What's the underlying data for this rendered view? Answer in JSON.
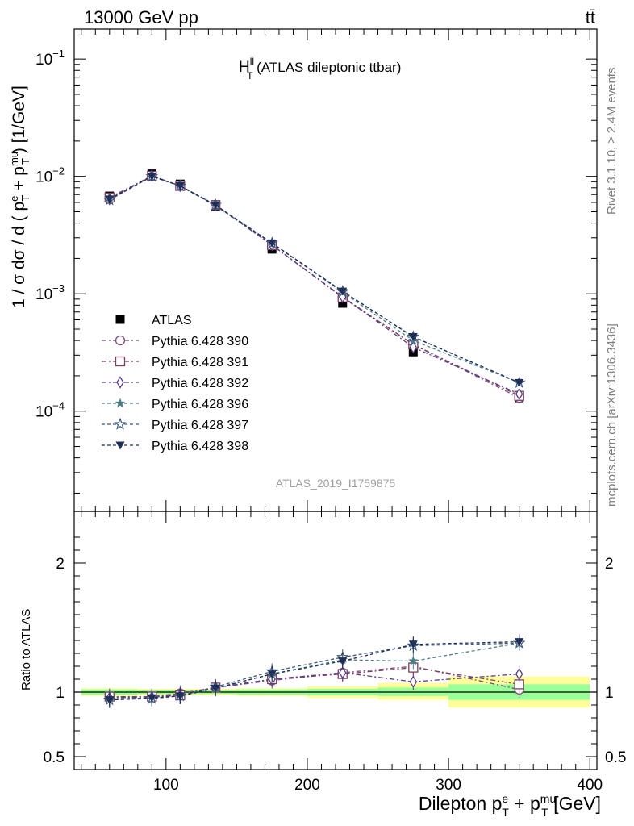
{
  "header": {
    "left": "13000 GeV pp",
    "right": "tt̄"
  },
  "plot_title": {
    "main": "H",
    "sup": "ll",
    "sub": "T",
    "rest": " (ATLAS dileptonic ttbar)"
  },
  "watermark": "ATLAS_2019_I1759875",
  "side_text": {
    "rivet": "Rivet 3.1.10, ≥ 2.4M events",
    "mcplots": "mcplots.cern.ch [arXiv:1306.3436]"
  },
  "ratio_ylabel": "Ratio to ATLAS",
  "chart_data": [
    {
      "type": "line",
      "yscale": "log",
      "ylabel": "1 / σ  dσ / d ( p^e_T + p^mu_T ) [1/GeV]",
      "xlim": [
        35,
        405
      ],
      "ylim": [
        1.4e-05,
        0.18
      ],
      "yticks": [
        {
          "value": 0.1,
          "label": "10",
          "exp": "−1"
        },
        {
          "value": 0.01,
          "label": "10",
          "exp": "−2"
        },
        {
          "value": 0.001,
          "label": "10",
          "exp": "−3"
        },
        {
          "value": 0.0001,
          "label": "10",
          "exp": "−4"
        }
      ],
      "x": [
        60,
        90,
        110,
        135,
        175,
        225,
        275,
        350
      ],
      "series": [
        {
          "name": "ATLAS",
          "color": "#000000",
          "marker": "square-filled",
          "dash": "",
          "values": [
            0.0068,
            0.0105,
            0.0086,
            0.0055,
            0.0024,
            0.00083,
            0.00032,
            0.00013
          ]
        },
        {
          "name": "Pythia 6.428 390",
          "color": "#7b4f7f",
          "marker": "circle-open",
          "dash": "6,3,2,3",
          "values": [
            0.0065,
            0.0101,
            0.0083,
            0.0057,
            0.0026,
            0.00094,
            0.00037,
            0.00013
          ]
        },
        {
          "name": "Pythia 6.428 391",
          "color": "#7b3f5f",
          "marker": "square-open",
          "dash": "6,3,2,3",
          "values": [
            0.0066,
            0.0101,
            0.0083,
            0.0057,
            0.0026,
            0.00093,
            0.00037,
            0.000135
          ]
        },
        {
          "name": "Pythia 6.428 392",
          "color": "#5a3f8a",
          "marker": "diamond-open",
          "dash": "6,3,2,3",
          "values": [
            0.0064,
            0.0101,
            0.0083,
            0.0057,
            0.0026,
            0.00094,
            0.00035,
            0.00014
          ]
        },
        {
          "name": "Pythia 6.428 396",
          "color": "#4f7f85",
          "marker": "star-filled",
          "dash": "4,3",
          "values": [
            0.0064,
            0.01,
            0.0083,
            0.0056,
            0.0027,
            0.00103,
            0.0004,
            0.000175
          ]
        },
        {
          "name": "Pythia 6.428 397",
          "color": "#3f5a7f",
          "marker": "star-open",
          "dash": "4,3",
          "values": [
            0.0063,
            0.01,
            0.0083,
            0.0057,
            0.0027,
            0.00105,
            0.00043,
            0.000175
          ]
        },
        {
          "name": "Pythia 6.428 398",
          "color": "#1f2f55",
          "marker": "triangle-down-filled",
          "dash": "4,3",
          "values": [
            0.0064,
            0.01,
            0.0083,
            0.0057,
            0.0027,
            0.00105,
            0.00043,
            0.000175
          ]
        }
      ]
    },
    {
      "type": "line",
      "ylabel": "Ratio to ATLAS",
      "xlabel": "Dilepton p^e_T + p^mu_T [GeV]",
      "xlim": [
        35,
        405
      ],
      "ylim": [
        0.4,
        2.4
      ],
      "yticks": [
        0.5,
        1,
        2
      ],
      "xticks": [
        100,
        200,
        300,
        400
      ],
      "bands": [
        {
          "x0": 40,
          "x1": 80,
          "inner": [
            0.98,
            1.02
          ],
          "outer": [
            0.97,
            1.03
          ]
        },
        {
          "x0": 80,
          "x1": 100,
          "inner": [
            0.985,
            1.015
          ],
          "outer": [
            0.975,
            1.025
          ]
        },
        {
          "x0": 100,
          "x1": 120,
          "inner": [
            0.985,
            1.015
          ],
          "outer": [
            0.975,
            1.025
          ]
        },
        {
          "x0": 120,
          "x1": 150,
          "inner": [
            0.985,
            1.015
          ],
          "outer": [
            0.975,
            1.025
          ]
        },
        {
          "x0": 150,
          "x1": 200,
          "inner": [
            0.98,
            1.02
          ],
          "outer": [
            0.97,
            1.03
          ]
        },
        {
          "x0": 200,
          "x1": 250,
          "inner": [
            0.975,
            1.025
          ],
          "outer": [
            0.955,
            1.045
          ]
        },
        {
          "x0": 250,
          "x1": 300,
          "inner": [
            0.97,
            1.035
          ],
          "outer": [
            0.94,
            1.07
          ]
        },
        {
          "x0": 300,
          "x1": 400,
          "inner": [
            0.94,
            1.06
          ],
          "outer": [
            0.88,
            1.12
          ]
        }
      ],
      "x": [
        60,
        90,
        110,
        135,
        175,
        225,
        275,
        350
      ],
      "series": [
        {
          "name": "Pythia 6.428 390",
          "values": [
            0.96,
            0.965,
            0.99,
            1.035,
            1.09,
            1.15,
            1.2,
            1.02
          ]
        },
        {
          "name": "Pythia 6.428 391",
          "values": [
            0.965,
            0.965,
            0.975,
            1.035,
            1.1,
            1.14,
            1.19,
            1.06
          ]
        },
        {
          "name": "Pythia 6.428 392",
          "values": [
            0.955,
            0.96,
            0.975,
            1.035,
            1.1,
            1.15,
            1.08,
            1.14
          ]
        },
        {
          "name": "Pythia 6.428 396",
          "values": [
            0.945,
            0.955,
            0.97,
            1.03,
            1.14,
            1.25,
            1.24,
            1.38
          ]
        },
        {
          "name": "Pythia 6.428 397",
          "values": [
            0.94,
            0.95,
            0.97,
            1.04,
            1.16,
            1.27,
            1.36,
            1.38
          ]
        },
        {
          "name": "Pythia 6.428 398",
          "values": [
            0.94,
            0.955,
            0.97,
            1.03,
            1.14,
            1.24,
            1.37,
            1.39
          ]
        }
      ]
    }
  ]
}
